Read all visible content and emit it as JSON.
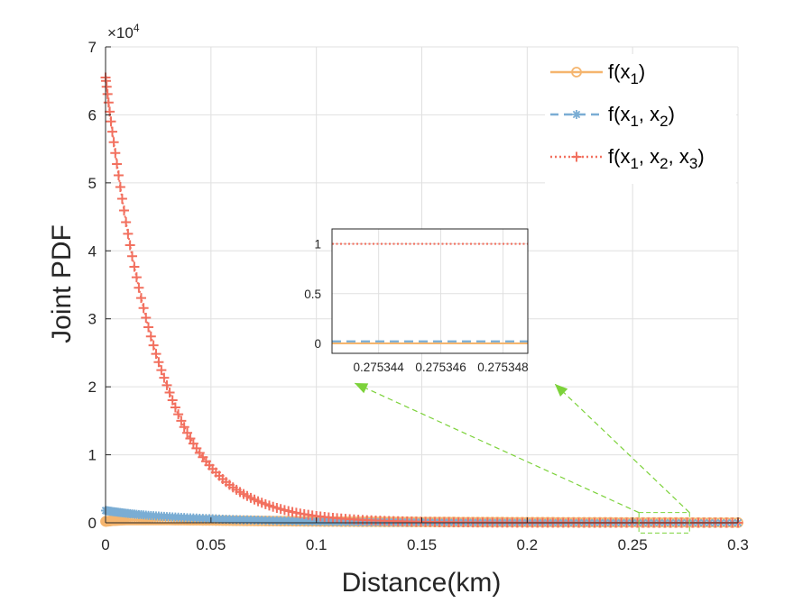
{
  "chart_data": {
    "type": "line",
    "xlabel": "Distance(km)",
    "ylabel": "Joint PDF",
    "xlim": [
      0,
      0.3
    ],
    "ylim": [
      0,
      7
    ],
    "y_exponent_label": "×10",
    "y_exponent": "4",
    "y_scale": 10000,
    "x_ticks": [
      0,
      0.05,
      0.1,
      0.15,
      0.2,
      0.25,
      0.3
    ],
    "x_tick_labels": [
      "0",
      "0.05",
      "0.1",
      "0.15",
      "0.2",
      "0.25",
      "0.3"
    ],
    "y_ticks": [
      0,
      1,
      2,
      3,
      4,
      5,
      6,
      7
    ],
    "y_tick_labels": [
      "0",
      "1",
      "2",
      "3",
      "4",
      "5",
      "6",
      "7"
    ],
    "grid": true,
    "legend_position": "top-right",
    "series": [
      {
        "name": "f(x1)",
        "label_base": "f(x",
        "label_sub": [
          "1"
        ],
        "color": "#F5B56E",
        "line": "solid",
        "marker": "circle",
        "x": [
          0,
          0.003,
          0.006,
          0.01,
          0.015,
          0.02,
          0.03,
          0.05,
          0.1,
          0.15,
          0.2,
          0.25,
          0.3
        ],
        "values": [
          0.02,
          0.03,
          0.035,
          0.04,
          0.04,
          0.04,
          0.04,
          0.035,
          0.02,
          0.012,
          0.008,
          0.005,
          0.003
        ]
      },
      {
        "name": "f(x1, x2)",
        "label_base": "f(x",
        "label_sub": [
          "1",
          "2"
        ],
        "color": "#7AADD4",
        "line": "dashed",
        "marker": "asterisk",
        "x": [
          0,
          0.01,
          0.02,
          0.03,
          0.05,
          0.07,
          0.1,
          0.15,
          0.2,
          0.25,
          0.3
        ],
        "values": [
          0.18,
          0.14,
          0.11,
          0.09,
          0.06,
          0.04,
          0.02,
          0.008,
          0.003,
          0.001,
          0.0005
        ]
      },
      {
        "name": "f(x1, x2, x3)",
        "label_base": "f(x",
        "label_sub": [
          "1",
          "2",
          "3"
        ],
        "color": "#F2705F",
        "line": "dotted",
        "marker": "plus",
        "x": [
          0,
          0.003,
          0.006,
          0.009,
          0.012,
          0.015,
          0.018,
          0.021,
          0.024,
          0.027,
          0.03,
          0.04,
          0.05,
          0.06,
          0.07,
          0.08,
          0.09,
          0.1,
          0.12,
          0.15,
          0.2,
          0.25,
          0.3
        ],
        "values": [
          6.55,
          5.8,
          5.15,
          4.55,
          4.02,
          3.57,
          3.16,
          2.8,
          2.48,
          2.2,
          1.95,
          1.25,
          0.82,
          0.53,
          0.35,
          0.23,
          0.15,
          0.1,
          0.045,
          0.015,
          0.002,
          0.0003,
          5e-05
        ]
      }
    ],
    "inset": {
      "xlim": [
        0.2753425,
        0.2753488
      ],
      "ylim": [
        -0.1,
        1.15
      ],
      "x_ticks": [
        0.275344,
        0.275346,
        0.275348
      ],
      "x_tick_labels": [
        "0.275344",
        "0.275346",
        "0.275348"
      ],
      "y_ticks": [
        0,
        0.5,
        1
      ],
      "y_tick_labels": [
        "0",
        "0.5",
        "1"
      ],
      "series_values": [
        0,
        0.02,
        1
      ],
      "zoom_region_x": [
        0.253,
        0.277
      ],
      "zoom_region_y": [
        -0.15,
        0.15
      ]
    }
  },
  "colors": {
    "zoom_arrow": "#7CD23A",
    "grid": "#E0E0E0",
    "axis": "#262626"
  }
}
